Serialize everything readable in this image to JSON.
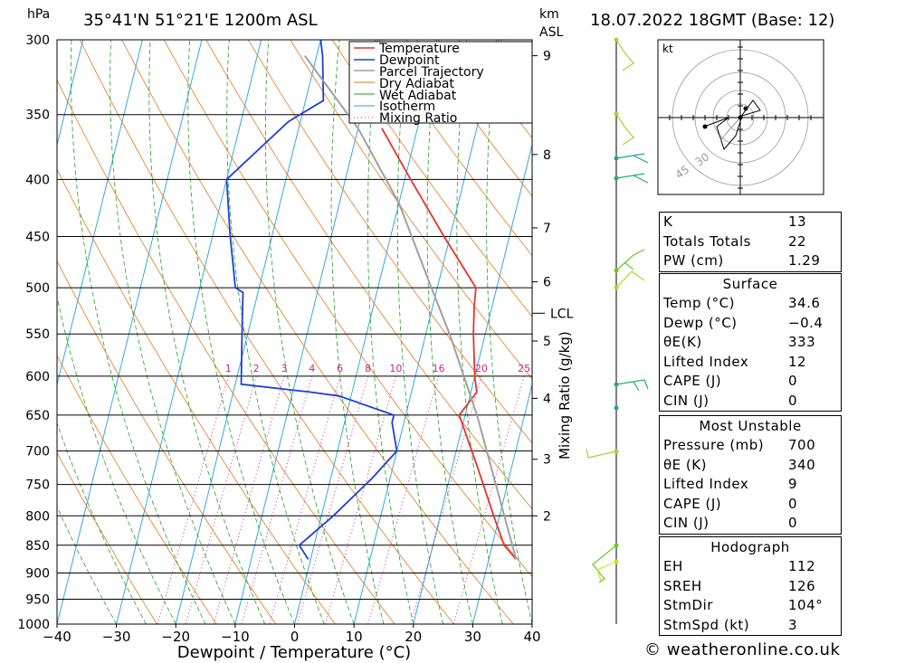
{
  "header": {
    "left_unit": "hPa",
    "location": "35°41'N  51°21'E  1200m  ASL",
    "km_label": "km",
    "asl_label": "ASL",
    "datetime": "18.07.2022  18GMT  (Base: 12)"
  },
  "chart_data": {
    "type": "line",
    "title": "35°41'N  51°21'E  1200m  ASL",
    "xlabel": "Dewpoint / Temperature (°C)",
    "ylabel": "hPa",
    "xlim": [
      -40,
      40
    ],
    "ylim": [
      1000,
      300
    ],
    "x_ticks": [
      "−40",
      "−30",
      "−20",
      "−10",
      "0",
      "10",
      "20",
      "30",
      "40"
    ],
    "pressure_levels": [
      300,
      350,
      400,
      450,
      500,
      550,
      600,
      650,
      700,
      750,
      800,
      850,
      900,
      950,
      1000
    ],
    "height_km_ticks": [
      {
        "label": "9",
        "p": 310
      },
      {
        "label": "8",
        "p": 380
      },
      {
        "label": "7",
        "p": 442
      },
      {
        "label": "6",
        "p": 494
      },
      {
        "label": "5",
        "p": 558
      },
      {
        "label": "4",
        "p": 628
      },
      {
        "label": "3",
        "p": 712
      },
      {
        "label": "2",
        "p": 800
      }
    ],
    "lcl": {
      "label": "LCL",
      "p": 527
    },
    "mixing_ratio_label": "Mixing Ratio (g/kg)",
    "mixing_ratio_values": [
      "1",
      "2",
      "3",
      "4",
      "6",
      "8",
      "10",
      "16",
      "20",
      "25"
    ],
    "legend": [
      "Temperature",
      "Dewpoint",
      "Parcel Trajectory",
      "Dry Adiabat",
      "Wet Adiabat",
      "Isotherm",
      "Mixing Ratio"
    ],
    "colors": {
      "temperature": "#e8322b",
      "dewpoint": "#1e3fd6",
      "parcel": "#a0a0a0",
      "dry": "#e07a1a",
      "wet": "#22a022",
      "isotherm": "#1ea0e0",
      "mixing": "#d0208a"
    },
    "series": [
      {
        "name": "Temperature",
        "points": [
          [
            34.6,
            875
          ],
          [
            32,
            850
          ],
          [
            29,
            800
          ],
          [
            24,
            720
          ],
          [
            19,
            650
          ],
          [
            21,
            620
          ],
          [
            20,
            600
          ],
          [
            18,
            550
          ],
          [
            17,
            520
          ],
          [
            16.5,
            500
          ],
          [
            9,
            450
          ],
          [
            1,
            400
          ],
          [
            -6,
            360
          ]
        ]
      },
      {
        "name": "Dewpoint",
        "points": [
          [
            -0.4,
            875
          ],
          [
            -2.5,
            850
          ],
          [
            2,
            800
          ],
          [
            7,
            740
          ],
          [
            10,
            700
          ],
          [
            8,
            660
          ],
          [
            8,
            650
          ],
          [
            -2,
            625
          ],
          [
            -7,
            620
          ],
          [
            -19,
            610
          ],
          [
            -22,
            520
          ],
          [
            -22.5,
            505
          ],
          [
            -24,
            500
          ],
          [
            -27,
            450
          ],
          [
            -30,
            400
          ],
          [
            -22,
            355
          ],
          [
            -17,
            340
          ],
          [
            -19,
            310
          ],
          [
            -20,
            300
          ]
        ]
      },
      {
        "name": "Parcel Trajectory",
        "points": [
          [
            34.6,
            875
          ],
          [
            22,
            650
          ],
          [
            14,
            550
          ],
          [
            9,
            500
          ],
          [
            0,
            420
          ],
          [
            -10,
            360
          ],
          [
            -22,
            310
          ]
        ]
      }
    ]
  },
  "hodograph": {
    "unit": "kt",
    "rings": [
      "30",
      "45"
    ]
  },
  "indices": {
    "rows": [
      {
        "label": "K",
        "value": "13"
      },
      {
        "label": "Totals Totals",
        "value": "22"
      },
      {
        "label": "PW (cm)",
        "value": "1.29"
      }
    ]
  },
  "surface": {
    "title": "Surface",
    "rows": [
      {
        "label": "Temp (°C)",
        "value": "34.6"
      },
      {
        "label": "Dewp (°C)",
        "value": "−0.4"
      },
      {
        "label": "θE(K)",
        "value": "333"
      },
      {
        "label": "Lifted Index",
        "value": "12"
      },
      {
        "label": "CAPE (J)",
        "value": "0"
      },
      {
        "label": "CIN (J)",
        "value": "0"
      }
    ]
  },
  "most_unstable": {
    "title": "Most Unstable",
    "rows": [
      {
        "label": "Pressure (mb)",
        "value": "700"
      },
      {
        "label": "θE (K)",
        "value": "340"
      },
      {
        "label": "Lifted Index",
        "value": "9"
      },
      {
        "label": "CAPE (J)",
        "value": "0"
      },
      {
        "label": "CIN (J)",
        "value": "0"
      }
    ]
  },
  "hodograph_table": {
    "title": "Hodograph",
    "rows": [
      {
        "label": "EH",
        "value": "112"
      },
      {
        "label": "SREH",
        "value": "126"
      },
      {
        "label": "StmDir",
        "value": "104°"
      },
      {
        "label": "StmSpd (kt)",
        "value": "3"
      }
    ]
  },
  "footer": {
    "credit": "© weatheronline.co.uk"
  }
}
